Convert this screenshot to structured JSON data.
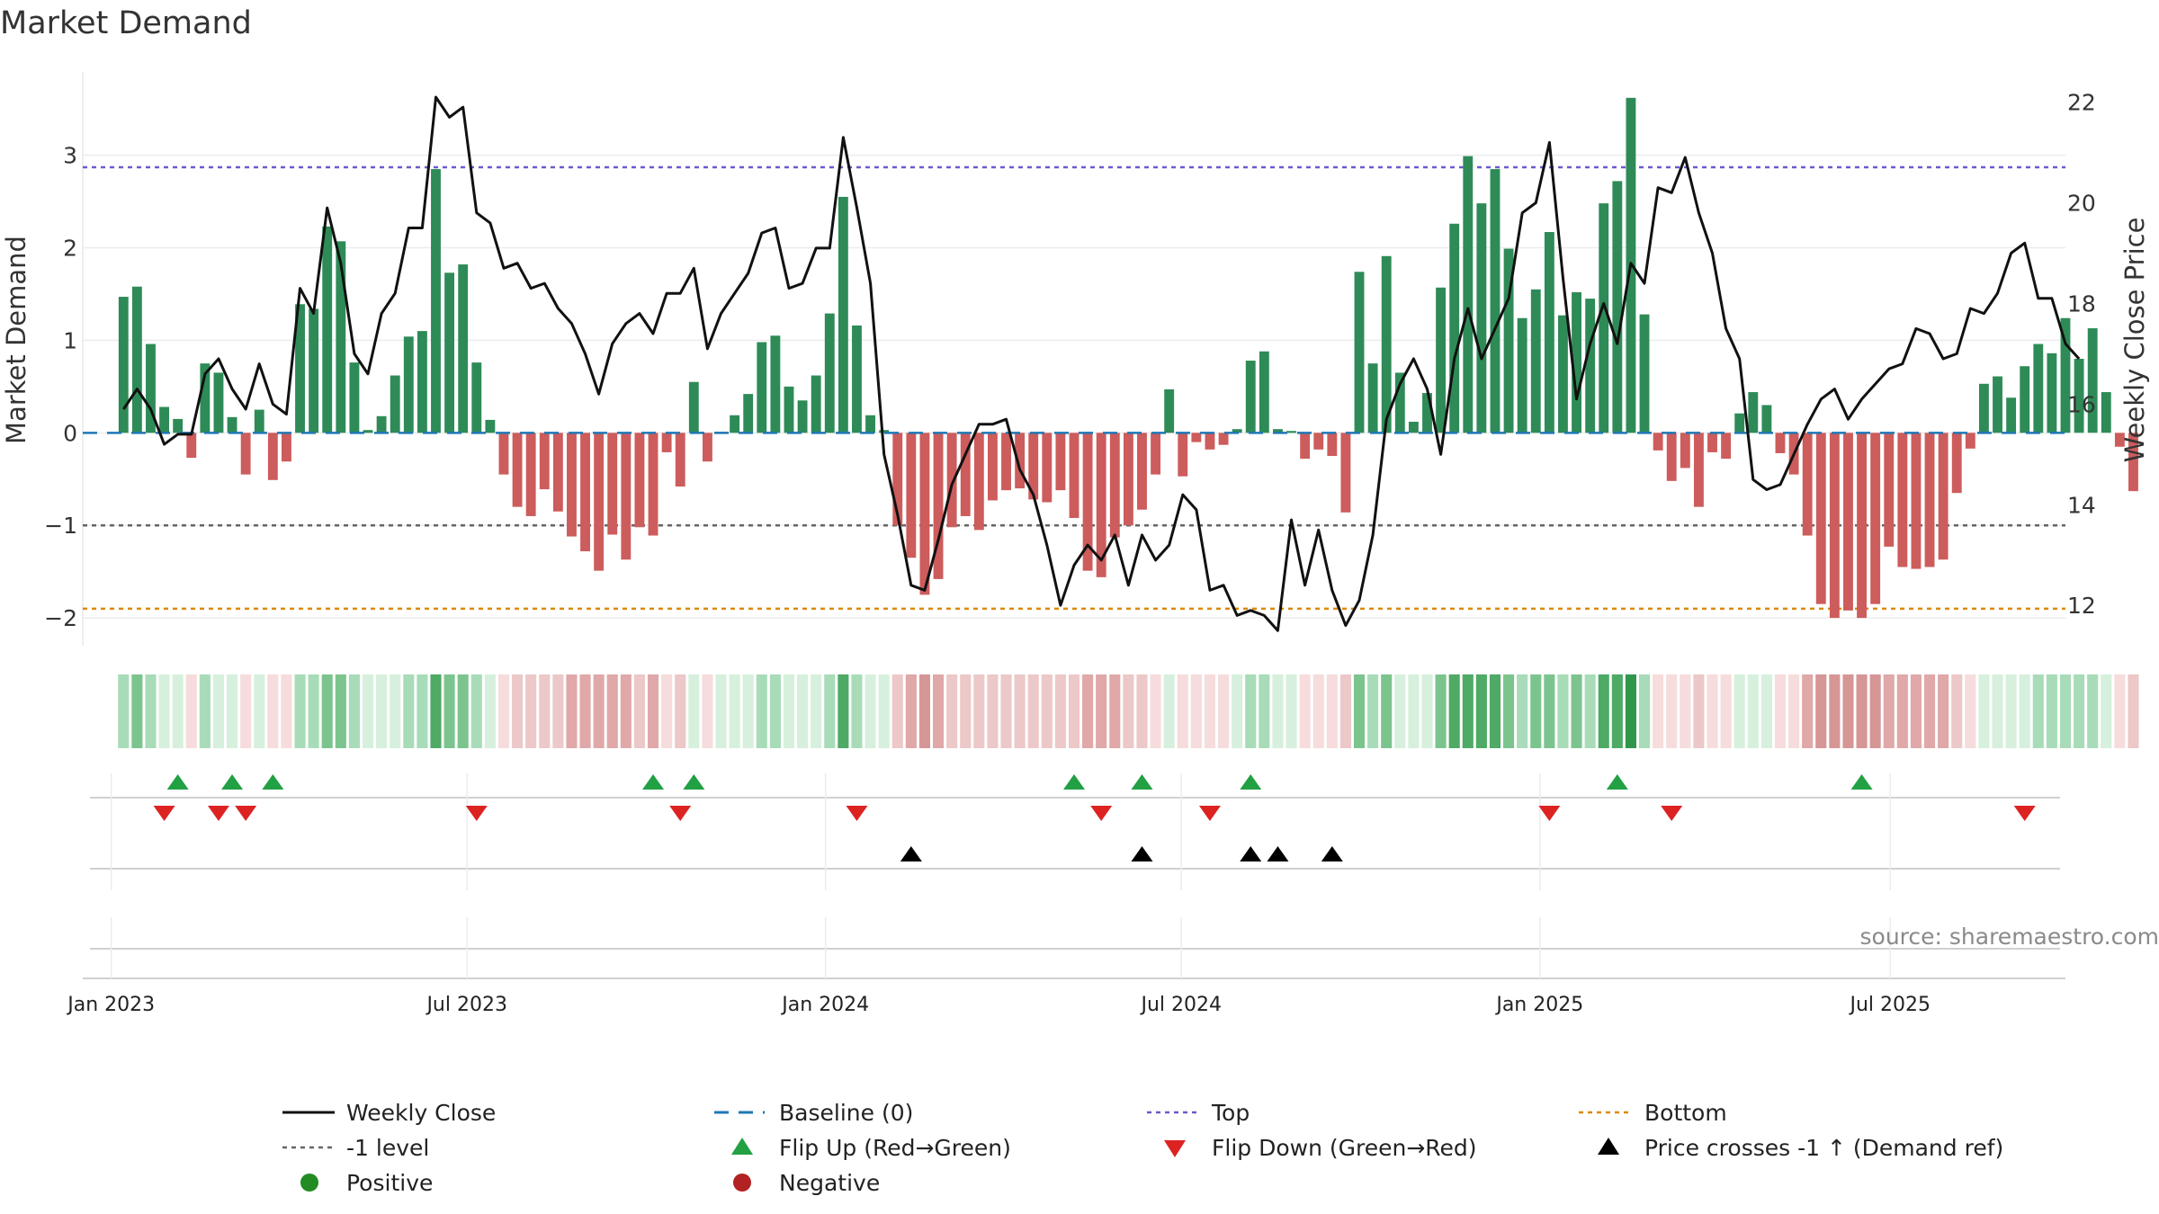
{
  "chart_data": {
    "type": "bar",
    "title": "Market Demand",
    "ylabel_left": "Market Demand",
    "ylabel_right": "Weekly Close Price",
    "source": "source: sharemaestro.com",
    "ylim_left": [
      -2.3,
      3.9
    ],
    "ylim_right": [
      11.2,
      22.6
    ],
    "yticks_left": [
      -2,
      -1,
      0,
      1,
      2,
      3
    ],
    "ytick_labels_left": [
      "−2",
      "−1",
      "0",
      "1",
      "2",
      "3"
    ],
    "yticks_right": [
      12,
      14,
      16,
      18,
      20,
      22
    ],
    "x_range_weeks": [
      -3,
      143
    ],
    "x_ticks": [
      {
        "label": "Jan 2023",
        "week": -0.9
      },
      {
        "label": "Jul 2023",
        "week": 25.3
      },
      {
        "label": "Jan 2024",
        "week": 51.7
      },
      {
        "label": "Jul 2024",
        "week": 77.9
      },
      {
        "label": "Jan 2025",
        "week": 104.3
      },
      {
        "label": "Jul 2025",
        "week": 130.1
      }
    ],
    "reference_lines": {
      "baseline": 0,
      "top": 2.87,
      "minus_one": -1,
      "bottom": -1.9
    },
    "demand": [
      1.47,
      1.58,
      0.96,
      0.28,
      0.15,
      -0.27,
      0.75,
      0.65,
      0.17,
      -0.45,
      0.25,
      -0.51,
      -0.31,
      1.39,
      1.34,
      2.23,
      2.07,
      0.76,
      0.03,
      0.18,
      0.62,
      1.04,
      1.1,
      2.85,
      1.73,
      1.82,
      0.76,
      0.14,
      -0.45,
      -0.8,
      -0.9,
      -0.61,
      -0.85,
      -1.12,
      -1.28,
      -1.49,
      -1.1,
      -1.37,
      -1.02,
      -1.11,
      -0.21,
      -0.58,
      0.55,
      -0.31,
      0.01,
      0.19,
      0.42,
      0.98,
      1.05,
      0.5,
      0.35,
      0.62,
      1.29,
      2.55,
      1.16,
      0.19,
      0.03,
      -1.0,
      -1.35,
      -1.75,
      -1.58,
      -1.02,
      -0.9,
      -1.05,
      -0.73,
      -0.62,
      -0.6,
      -0.72,
      -0.75,
      -0.62,
      -0.92,
      -1.49,
      -1.56,
      -1.13,
      -1.0,
      -0.83,
      -0.45,
      0.47,
      -0.47,
      -0.1,
      -0.18,
      -0.13,
      0.04,
      0.78,
      0.88,
      0.04,
      0.02,
      -0.28,
      -0.18,
      -0.25,
      -0.86,
      1.74,
      0.75,
      1.91,
      0.65,
      0.12,
      0.43,
      1.57,
      2.26,
      2.99,
      2.48,
      2.85,
      1.99,
      1.24,
      1.55,
      2.17,
      1.27,
      1.52,
      1.45,
      2.48,
      2.72,
      3.62,
      1.28,
      -0.19,
      -0.52,
      -0.38,
      -0.8,
      -0.21,
      -0.28,
      0.21,
      0.44,
      0.3,
      -0.22,
      -0.45,
      -1.11,
      -1.85,
      -2.0,
      -1.92,
      -2.0,
      -1.85,
      -1.23,
      -1.45,
      -1.47,
      -1.45,
      -1.37,
      -0.65,
      -0.17,
      0.53,
      0.61,
      0.38,
      0.72,
      0.96,
      0.86,
      1.24,
      0.8,
      1.13,
      0.44,
      -0.15,
      -0.63
    ],
    "weekly_close": [
      15.9,
      16.3,
      15.9,
      15.2,
      15.4,
      15.4,
      16.6,
      16.9,
      16.3,
      15.9,
      16.8,
      16.0,
      15.8,
      18.3,
      17.8,
      19.9,
      18.8,
      17.0,
      16.6,
      17.8,
      18.2,
      19.5,
      19.5,
      22.1,
      21.7,
      21.9,
      19.8,
      19.6,
      18.7,
      18.8,
      18.3,
      18.4,
      17.9,
      17.6,
      17.0,
      16.2,
      17.2,
      17.6,
      17.8,
      17.4,
      18.2,
      18.2,
      18.7,
      17.1,
      17.8,
      18.2,
      18.6,
      19.4,
      19.5,
      18.3,
      18.4,
      19.1,
      19.1,
      21.3,
      19.9,
      18.4,
      15.0,
      13.8,
      12.4,
      12.3,
      13.3,
      14.4,
      15.0,
      15.6,
      15.6,
      15.7,
      14.7,
      14.2,
      13.2,
      12.0,
      12.8,
      13.2,
      12.9,
      13.4,
      12.4,
      13.4,
      12.9,
      13.2,
      14.2,
      13.9,
      12.3,
      12.4,
      11.8,
      11.9,
      11.8,
      11.5,
      13.7,
      12.4,
      13.5,
      12.3,
      11.6,
      12.1,
      13.4,
      15.7,
      16.4,
      16.9,
      16.3,
      15.0,
      16.9,
      17.9,
      16.9,
      17.5,
      18.1,
      19.8,
      20.0,
      21.2,
      18.5,
      16.1,
      17.2,
      18.0,
      17.2,
      18.8,
      18.4,
      20.3,
      20.2,
      20.9,
      19.8,
      19.0,
      17.5,
      16.9,
      14.5,
      14.3,
      14.4,
      15.0,
      15.6,
      16.1,
      16.3,
      15.7,
      16.1,
      16.4,
      16.7,
      16.8,
      17.5,
      17.4,
      16.9,
      17.0,
      17.9,
      17.8,
      18.2,
      19.0,
      19.2,
      18.1,
      18.1,
      17.2,
      16.9
    ],
    "flip_up_weeks": [
      4,
      8,
      11,
      39,
      42,
      70,
      75,
      83,
      110,
      128
    ],
    "flip_down_weeks": [
      3,
      7,
      9,
      26,
      41,
      54,
      72,
      80,
      105,
      114,
      140
    ],
    "price_cross_weeks": [
      58,
      75,
      83,
      85,
      89
    ],
    "legend": {
      "weekly_close": "Weekly Close",
      "baseline": "Baseline (0)",
      "top": "Top",
      "bottom": "Bottom",
      "minus_one": "-1 level",
      "flip_up": "Flip Up (Red→Green)",
      "flip_down": "Flip Down (Green→Red)",
      "price_cross": "Price crosses -1 ↑ (Demand ref)",
      "positive": "Positive",
      "negative": "Negative"
    },
    "colors": {
      "positive": "#2e8b57",
      "negative": "#cd5c5c",
      "price": "#111111",
      "baseline": "#1f77b4",
      "top": "#6a5acd",
      "minus_one": "#666666",
      "bottom": "#dd8800",
      "flip_up": "#22a044",
      "flip_down": "#dd2222",
      "cross": "#000000",
      "legend_positive": "#228b22",
      "legend_negative": "#b22222"
    }
  }
}
